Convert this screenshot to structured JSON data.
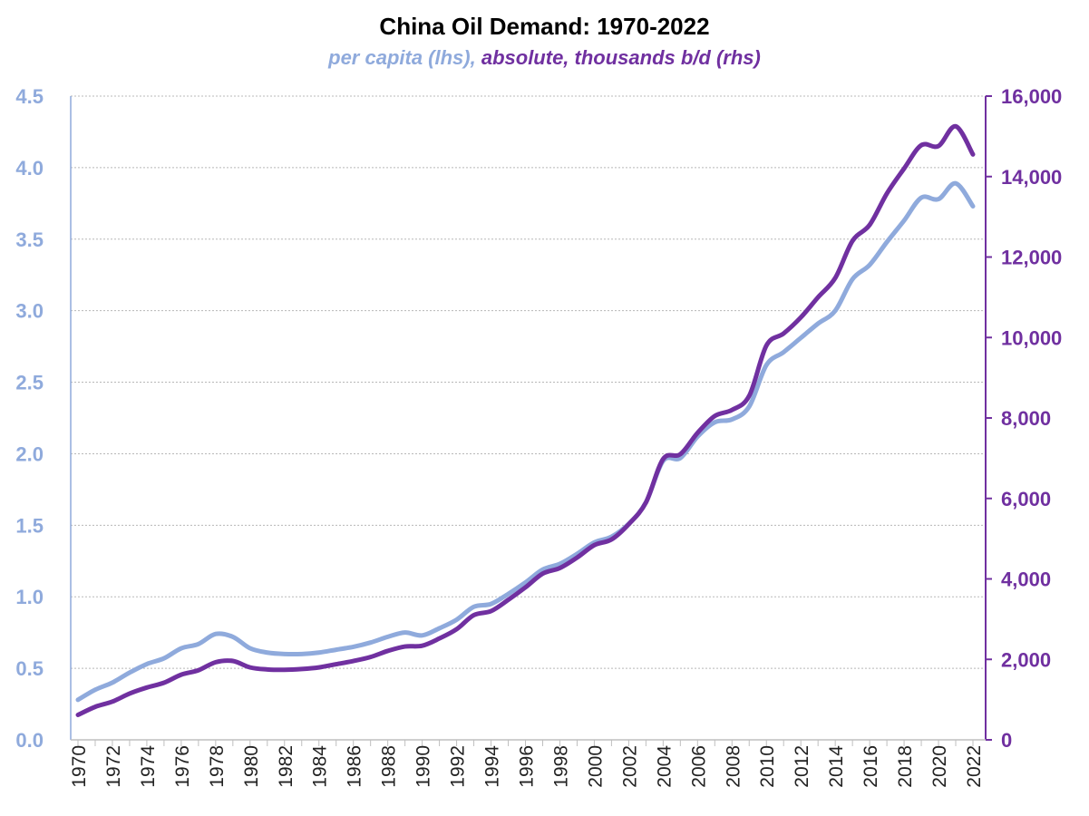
{
  "chart_data": {
    "type": "line",
    "title": "China Oil Demand: 1970-2022",
    "subtitle_parts": [
      {
        "text": "per capita (lhs)",
        "color": "#8faadc"
      },
      {
        "text": ", ",
        "color": "#8faadc"
      },
      {
        "text": "absolute, thousands b/d (rhs)",
        "color": "#7030a0"
      }
    ],
    "x": [
      1970,
      1971,
      1972,
      1973,
      1974,
      1975,
      1976,
      1977,
      1978,
      1979,
      1980,
      1981,
      1982,
      1983,
      1984,
      1985,
      1986,
      1987,
      1988,
      1989,
      1990,
      1991,
      1992,
      1993,
      1994,
      1995,
      1996,
      1997,
      1998,
      1999,
      2000,
      2001,
      2002,
      2003,
      2004,
      2005,
      2006,
      2007,
      2008,
      2009,
      2010,
      2011,
      2012,
      2013,
      2014,
      2015,
      2016,
      2017,
      2018,
      2019,
      2020,
      2021,
      2022
    ],
    "x_tick_labels": [
      "1970",
      "1972",
      "1974",
      "1976",
      "1978",
      "1980",
      "1982",
      "1984",
      "1986",
      "1988",
      "1990",
      "1992",
      "1994",
      "1996",
      "1998",
      "2000",
      "2002",
      "2004",
      "2006",
      "2008",
      "2010",
      "2012",
      "2014",
      "2016",
      "2018",
      "2020",
      "2022"
    ],
    "series": [
      {
        "name": "per capita (lhs)",
        "axis": "left",
        "color": "#8faadc",
        "values": [
          0.28,
          0.35,
          0.4,
          0.47,
          0.53,
          0.57,
          0.64,
          0.67,
          0.74,
          0.72,
          0.64,
          0.61,
          0.6,
          0.6,
          0.61,
          0.63,
          0.65,
          0.68,
          0.72,
          0.75,
          0.73,
          0.78,
          0.84,
          0.93,
          0.95,
          1.02,
          1.1,
          1.19,
          1.23,
          1.3,
          1.38,
          1.42,
          1.51,
          1.66,
          1.95,
          1.97,
          2.12,
          2.22,
          2.24,
          2.33,
          2.62,
          2.71,
          2.81,
          2.91,
          3.0,
          3.22,
          3.32,
          3.48,
          3.63,
          3.79,
          3.78,
          3.89,
          3.73
        ]
      },
      {
        "name": "absolute, thousands b/d (rhs)",
        "axis": "right",
        "color": "#7030a0",
        "values": [
          620,
          820,
          950,
          1150,
          1300,
          1420,
          1620,
          1730,
          1930,
          1960,
          1800,
          1750,
          1740,
          1760,
          1800,
          1880,
          1960,
          2060,
          2210,
          2320,
          2340,
          2520,
          2750,
          3100,
          3200,
          3480,
          3790,
          4130,
          4270,
          4530,
          4840,
          4980,
          5360,
          5900,
          6980,
          7100,
          7630,
          8050,
          8200,
          8550,
          9800,
          10100,
          10500,
          11000,
          11480,
          12400,
          12800,
          13580,
          14200,
          14780,
          14760,
          15250,
          14550
        ]
      }
    ],
    "y_left": {
      "ylim": [
        0,
        4.5
      ],
      "tick_labels": [
        "0.0",
        "0.5",
        "1.0",
        "1.5",
        "2.0",
        "2.5",
        "3.0",
        "3.5",
        "4.0",
        "4.5"
      ]
    },
    "y_right": {
      "ylim": [
        0,
        16000
      ],
      "tick_labels": [
        "0",
        "2,000",
        "4,000",
        "6,000",
        "8,000",
        "10,000",
        "12,000",
        "14,000",
        "16,000"
      ]
    },
    "grid": true,
    "legend": "none"
  }
}
